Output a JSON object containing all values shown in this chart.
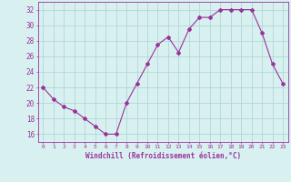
{
  "x": [
    0,
    1,
    2,
    3,
    4,
    5,
    6,
    7,
    8,
    9,
    10,
    11,
    12,
    13,
    14,
    15,
    16,
    17,
    18,
    19,
    20,
    21,
    22,
    23
  ],
  "y": [
    22,
    20.5,
    19.5,
    19,
    18,
    17,
    16,
    16,
    20,
    22.5,
    25,
    27.5,
    28.5,
    26.5,
    29.5,
    31,
    31,
    32,
    32,
    32,
    32,
    29,
    25,
    22.5
  ],
  "line_color": "#993399",
  "marker": "D",
  "marker_size": 2,
  "bg_color": "#d8f0f0",
  "grid_color": "#b0d8d8",
  "axis_color": "#993399",
  "xlabel": "Windchill (Refroidissement éolien,°C)",
  "xlabel_color": "#993399",
  "tick_color": "#993399",
  "ylim": [
    15,
    33
  ],
  "xlim": [
    -0.5,
    23.5
  ],
  "yticks": [
    16,
    18,
    20,
    22,
    24,
    26,
    28,
    30,
    32
  ],
  "xticks": [
    0,
    1,
    2,
    3,
    4,
    5,
    6,
    7,
    8,
    9,
    10,
    11,
    12,
    13,
    14,
    15,
    16,
    17,
    18,
    19,
    20,
    21,
    22,
    23
  ],
  "xtick_labels": [
    "0",
    "1",
    "2",
    "3",
    "4",
    "5",
    "6",
    "7",
    "8",
    "9",
    "10",
    "11",
    "12",
    "13",
    "14",
    "15",
    "16",
    "17",
    "18",
    "19",
    "20",
    "21",
    "22",
    "23"
  ]
}
